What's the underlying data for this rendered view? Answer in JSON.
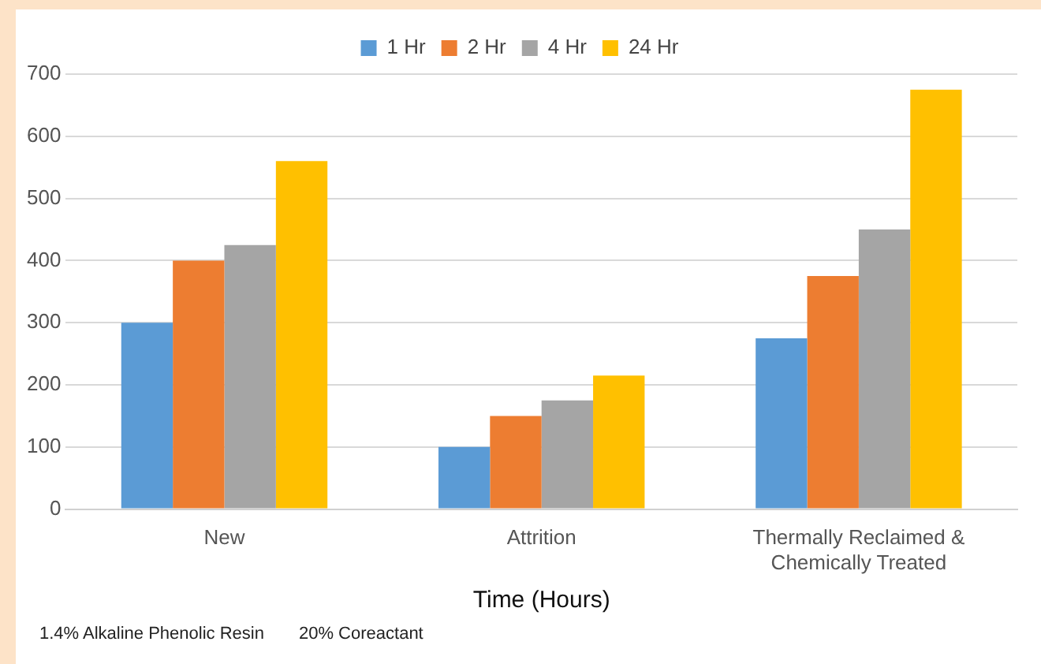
{
  "chart_data": {
    "type": "bar",
    "xlabel": "Time (Hours)",
    "categories": [
      "New",
      "Attrition",
      "Thermally Reclaimed & Chemically Treated"
    ],
    "series": [
      {
        "name": "1 Hr",
        "color": "#5b9bd5",
        "values": [
          300,
          100,
          275
        ]
      },
      {
        "name": "2 Hr",
        "color": "#ed7d31",
        "values": [
          400,
          150,
          375
        ]
      },
      {
        "name": "4 Hr",
        "color": "#a5a5a5",
        "values": [
          425,
          175,
          450
        ]
      },
      {
        "name": "24 Hr",
        "color": "#ffc000",
        "values": [
          560,
          215,
          675
        ]
      }
    ],
    "ylim": [
      0,
      700
    ],
    "yticks": [
      0,
      100,
      200,
      300,
      400,
      500,
      600,
      700
    ],
    "grid": "y",
    "legend": "top",
    "annotations": [
      "1.4% Alkaline Phenolic Resin",
      "20% Coreactant"
    ]
  }
}
